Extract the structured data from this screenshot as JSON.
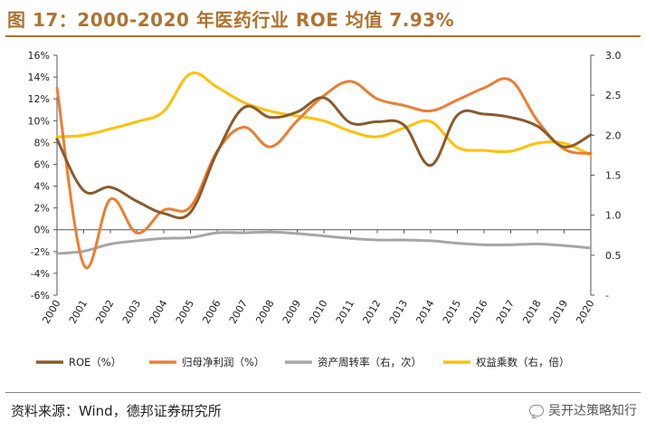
{
  "figure": {
    "title": "图 17：2000-2020 年医药行业 ROE 均值 7.93%",
    "source": "资料来源：Wind，德邦证券研究所",
    "brand": "吴开达策略知行",
    "brand_icon": "wechat-icon",
    "accent_color": "#b0722f"
  },
  "chart_data": {
    "type": "line",
    "title": "2000-2020 年医药行业 ROE 均值 7.93%",
    "categories": [
      "2000",
      "2001",
      "2002",
      "2003",
      "2004",
      "2005",
      "2006",
      "2007",
      "2008",
      "2009",
      "2010",
      "2011",
      "2012",
      "2013",
      "2014",
      "2015",
      "2016",
      "2017",
      "2018",
      "2019",
      "2020"
    ],
    "left_axis": {
      "min": -6,
      "max": 16,
      "step": 2,
      "tick_labels": [
        "-6%",
        "-4%",
        "-2%",
        "0%",
        "2%",
        "4%",
        "6%",
        "8%",
        "10%",
        "12%",
        "14%",
        "16%"
      ]
    },
    "right_axis": {
      "min": 0,
      "max": 3.0,
      "step": 0.5,
      "tick_labels": [
        "-",
        "0.5",
        "1.0",
        "1.5",
        "2.0",
        "2.5",
        "3.0"
      ]
    },
    "grid": false,
    "legend_position": "bottom",
    "series": [
      {
        "name": "ROE（%）",
        "axis": "left",
        "color": "#8B5A2B",
        "values": [
          8.3,
          3.6,
          3.9,
          2.6,
          1.5,
          1.6,
          7.1,
          11.2,
          10.3,
          10.8,
          12.1,
          9.8,
          9.9,
          9.6,
          5.9,
          10.5,
          10.6,
          10.3,
          9.5,
          7.6,
          8.7
        ]
      },
      {
        "name": "归母净利润（%）",
        "axis": "left",
        "color": "#ED7D31",
        "values": [
          13.0,
          -3.2,
          2.8,
          -0.3,
          1.8,
          2.1,
          7.2,
          9.4,
          7.6,
          10.0,
          12.3,
          13.6,
          12.0,
          11.4,
          10.9,
          11.9,
          13.0,
          13.7,
          10.0,
          7.4,
          7.0
        ]
      },
      {
        "name": "资产周转率（右，次）",
        "axis": "right",
        "color": "#A6A6A6",
        "values": [
          0.52,
          0.55,
          0.64,
          0.68,
          0.71,
          0.72,
          0.78,
          0.78,
          0.79,
          0.77,
          0.74,
          0.71,
          0.69,
          0.69,
          0.68,
          0.65,
          0.63,
          0.63,
          0.64,
          0.62,
          0.59
        ]
      },
      {
        "name": "权益乘数（右，倍）",
        "axis": "right",
        "color": "#FFC000",
        "values": [
          1.98,
          2.0,
          2.08,
          2.17,
          2.3,
          2.77,
          2.6,
          2.41,
          2.3,
          2.24,
          2.18,
          2.05,
          1.98,
          2.09,
          2.17,
          1.85,
          1.81,
          1.8,
          1.9,
          1.9,
          1.75
        ]
      }
    ]
  }
}
